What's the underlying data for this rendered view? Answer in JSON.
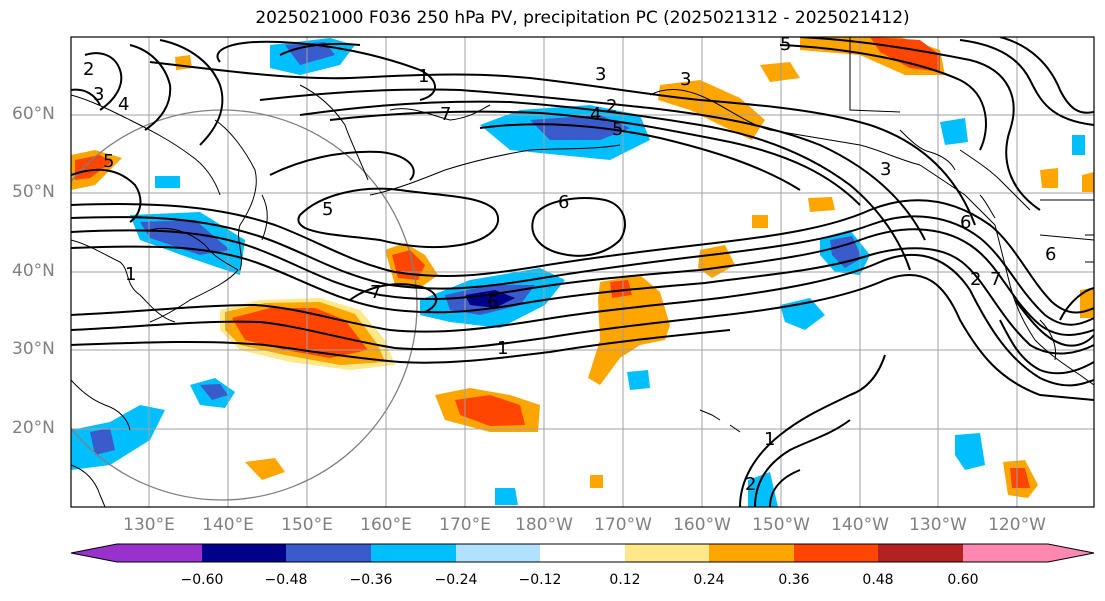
{
  "title": "2025021000 F036 250 hPa PV, precipitation PC (2025021312 - 2025021412)",
  "lat_labels": [
    "60°N",
    "50°N",
    "40°N",
    "30°N",
    "20°N"
  ],
  "lon_labels": [
    "130°E",
    "140°E",
    "150°E",
    "160°E",
    "170°E",
    "180°W",
    "170°W",
    "160°W",
    "150°W",
    "140°W",
    "130°W",
    "120°W"
  ],
  "colorbar": {
    "ticks": [
      "−0.60",
      "−0.48",
      "−0.36",
      "−0.24",
      "−0.12",
      "0.12",
      "0.24",
      "0.36",
      "0.48",
      "0.60"
    ],
    "colors": [
      "#9932cc",
      "#00008b",
      "#3a5bcc",
      "#00bfff",
      "#b0e2ff",
      "#ffffff",
      "#ffe88a",
      "#ffa500",
      "#ff4500",
      "#b22222",
      "#ff88b0"
    ]
  },
  "contour_labels": [
    "1",
    "2",
    "3",
    "4",
    "5",
    "6",
    "7",
    "1",
    "2",
    "3",
    "4",
    "5",
    "6",
    "7",
    "1",
    "2",
    "3",
    "5",
    "6",
    "7",
    "1",
    "2",
    "3",
    "5",
    "6"
  ],
  "map_extent": {
    "lon_min": 120,
    "lon_max": 245,
    "lat_min": 10,
    "lat_max": 70
  }
}
